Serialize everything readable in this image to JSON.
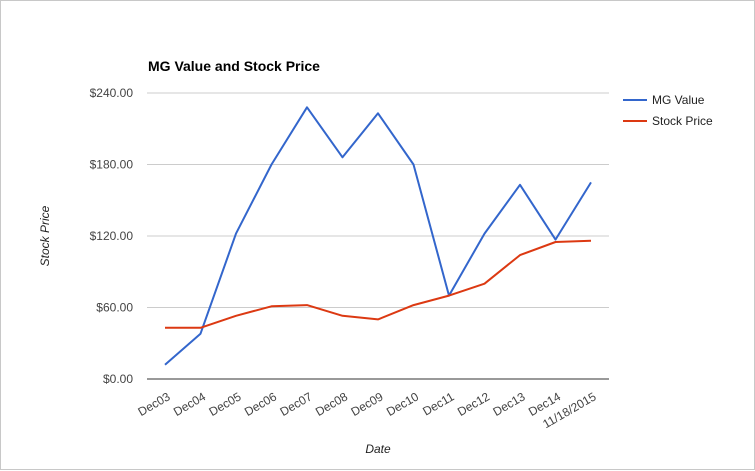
{
  "chart_data": {
    "type": "line",
    "title": "MG Value and Stock Price",
    "xlabel": "Date",
    "ylabel": "Stock Price",
    "categories": [
      "Dec03",
      "Dec04",
      "Dec05",
      "Dec06",
      "Dec07",
      "Dec08",
      "Dec09",
      "Dec10",
      "Dec11",
      "Dec12",
      "Dec13",
      "Dec14",
      "11/18/2015"
    ],
    "y_ticks": [
      "$0.00",
      "$60.00",
      "$120.00",
      "$180.00",
      "$240.00"
    ],
    "ylim": [
      0,
      240
    ],
    "grid": true,
    "legend_position": "right",
    "series": [
      {
        "name": "MG Value",
        "color": "#3366cc",
        "values": [
          12,
          38,
          122,
          180,
          228,
          186,
          223,
          180,
          70,
          122,
          163,
          117,
          165
        ]
      },
      {
        "name": "Stock Price",
        "color": "#dc3912",
        "values": [
          43,
          43,
          53,
          61,
          62,
          53,
          50,
          62,
          70,
          80,
          104,
          115,
          116
        ]
      }
    ]
  }
}
